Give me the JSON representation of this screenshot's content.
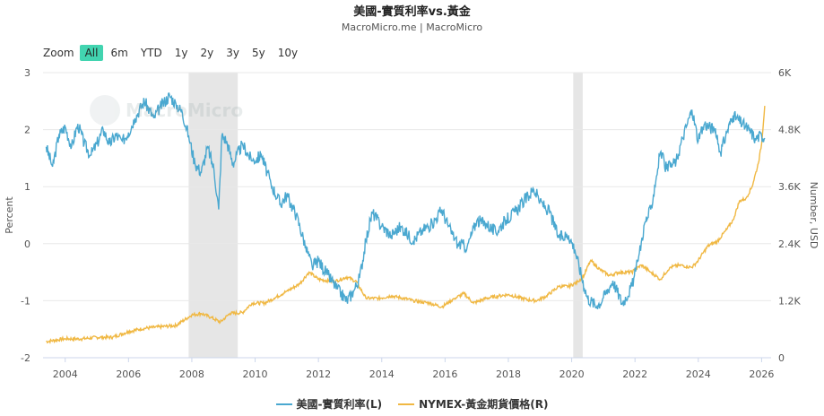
{
  "header": {
    "title": "美國-實質利率vs.黃金",
    "subtitle": "MacroMicro.me | MacroMicro"
  },
  "zoom": {
    "label": "Zoom",
    "options": [
      "All",
      "6m",
      "YTD",
      "1y",
      "2y",
      "3y",
      "5y",
      "10y"
    ],
    "active": "All"
  },
  "watermark": {
    "text": "MacroMicro"
  },
  "colors": {
    "real_rate": "#4aa8d0",
    "gold": "#f0b843",
    "recession": "#e6e6e6"
  },
  "chart_data": {
    "type": "line",
    "title": "美國-實質利率vs.黃金",
    "xlim": [
      2003.3,
      2026.3
    ],
    "x_ticks": [
      "2004",
      "2006",
      "2008",
      "2010",
      "2012",
      "2014",
      "2016",
      "2018",
      "2020",
      "2022",
      "2024",
      "2026"
    ],
    "left_axis": {
      "label": "Percent",
      "ylim": [
        -2,
        3
      ],
      "ticks": [
        "3",
        "2",
        "1",
        "0",
        "-1",
        "-2"
      ]
    },
    "right_axis": {
      "label": "Number, USD",
      "ylim": [
        0,
        6000
      ],
      "ticks": [
        "6K",
        "4.8K",
        "3.6K",
        "2.4K",
        "1.2K",
        "0"
      ]
    },
    "recession_bands": [
      [
        2007.9,
        2009.45
      ],
      [
        2020.05,
        2020.35
      ]
    ],
    "legend_position": "bottom",
    "series": [
      {
        "name": "美國-實質利率(L)",
        "axis": "left",
        "color": "#4aa8d0",
        "points": [
          [
            2003.4,
            1.7
          ],
          [
            2003.6,
            1.35
          ],
          [
            2003.8,
            1.9
          ],
          [
            2004.0,
            2.05
          ],
          [
            2004.2,
            1.7
          ],
          [
            2004.4,
            2.1
          ],
          [
            2004.6,
            1.75
          ],
          [
            2004.8,
            1.55
          ],
          [
            2005.0,
            1.75
          ],
          [
            2005.2,
            2.0
          ],
          [
            2005.4,
            1.75
          ],
          [
            2005.6,
            1.9
          ],
          [
            2005.8,
            1.8
          ],
          [
            2006.0,
            1.95
          ],
          [
            2006.2,
            2.2
          ],
          [
            2006.5,
            2.5
          ],
          [
            2006.8,
            2.2
          ],
          [
            2007.0,
            2.4
          ],
          [
            2007.3,
            2.6
          ],
          [
            2007.5,
            2.45
          ],
          [
            2007.7,
            2.3
          ],
          [
            2007.9,
            1.9
          ],
          [
            2008.1,
            1.4
          ],
          [
            2008.3,
            1.25
          ],
          [
            2008.5,
            1.7
          ],
          [
            2008.7,
            1.3
          ],
          [
            2008.85,
            0.6
          ],
          [
            2008.95,
            1.9
          ],
          [
            2009.1,
            1.8
          ],
          [
            2009.3,
            1.4
          ],
          [
            2009.6,
            1.75
          ],
          [
            2009.9,
            1.45
          ],
          [
            2010.2,
            1.55
          ],
          [
            2010.5,
            1.05
          ],
          [
            2010.8,
            0.7
          ],
          [
            2011.0,
            0.85
          ],
          [
            2011.3,
            0.5
          ],
          [
            2011.6,
            -0.05
          ],
          [
            2011.8,
            -0.4
          ],
          [
            2012.0,
            -0.3
          ],
          [
            2012.3,
            -0.55
          ],
          [
            2012.6,
            -0.8
          ],
          [
            2012.9,
            -1.0
          ],
          [
            2013.1,
            -0.85
          ],
          [
            2013.3,
            -0.6
          ],
          [
            2013.5,
            0.05
          ],
          [
            2013.7,
            0.55
          ],
          [
            2014.0,
            0.3
          ],
          [
            2014.3,
            0.15
          ],
          [
            2014.6,
            0.3
          ],
          [
            2015.0,
            0.05
          ],
          [
            2015.3,
            0.25
          ],
          [
            2015.6,
            0.35
          ],
          [
            2015.9,
            0.6
          ],
          [
            2016.1,
            0.3
          ],
          [
            2016.4,
            0.0
          ],
          [
            2016.7,
            -0.05
          ],
          [
            2017.0,
            0.4
          ],
          [
            2017.3,
            0.35
          ],
          [
            2017.6,
            0.2
          ],
          [
            2017.9,
            0.4
          ],
          [
            2018.2,
            0.55
          ],
          [
            2018.5,
            0.75
          ],
          [
            2018.8,
            0.95
          ],
          [
            2019.0,
            0.75
          ],
          [
            2019.3,
            0.55
          ],
          [
            2019.6,
            0.1
          ],
          [
            2019.9,
            0.15
          ],
          [
            2020.1,
            -0.1
          ],
          [
            2020.3,
            -0.55
          ],
          [
            2020.5,
            -0.95
          ],
          [
            2020.8,
            -1.1
          ],
          [
            2021.0,
            -0.95
          ],
          [
            2021.3,
            -0.65
          ],
          [
            2021.6,
            -1.05
          ],
          [
            2021.9,
            -0.75
          ],
          [
            2022.1,
            -0.3
          ],
          [
            2022.3,
            0.35
          ],
          [
            2022.5,
            0.6
          ],
          [
            2022.8,
            1.6
          ],
          [
            2023.0,
            1.3
          ],
          [
            2023.3,
            1.45
          ],
          [
            2023.5,
            1.85
          ],
          [
            2023.8,
            2.35
          ],
          [
            2024.0,
            1.8
          ],
          [
            2024.2,
            2.1
          ],
          [
            2024.5,
            2.0
          ],
          [
            2024.7,
            1.6
          ],
          [
            2024.9,
            1.95
          ],
          [
            2025.1,
            2.25
          ],
          [
            2025.4,
            2.1
          ],
          [
            2025.6,
            2.0
          ],
          [
            2025.8,
            1.85
          ],
          [
            2026.0,
            1.9
          ],
          [
            2026.1,
            1.85
          ]
        ]
      },
      {
        "name": "NYMEX-黃金期貨價格(R)",
        "axis": "right",
        "color": "#f0b843",
        "points": [
          [
            2003.4,
            340
          ],
          [
            2004.0,
            400
          ],
          [
            2004.5,
            395
          ],
          [
            2005.0,
            430
          ],
          [
            2005.5,
            430
          ],
          [
            2006.0,
            550
          ],
          [
            2006.5,
            620
          ],
          [
            2007.0,
            650
          ],
          [
            2007.5,
            680
          ],
          [
            2008.0,
            900
          ],
          [
            2008.3,
            930
          ],
          [
            2008.6,
            850
          ],
          [
            2008.9,
            750
          ],
          [
            2009.2,
            930
          ],
          [
            2009.6,
            950
          ],
          [
            2009.9,
            1150
          ],
          [
            2010.3,
            1150
          ],
          [
            2010.6,
            1250
          ],
          [
            2011.0,
            1400
          ],
          [
            2011.4,
            1550
          ],
          [
            2011.7,
            1800
          ],
          [
            2012.0,
            1650
          ],
          [
            2012.5,
            1600
          ],
          [
            2012.9,
            1700
          ],
          [
            2013.2,
            1600
          ],
          [
            2013.5,
            1250
          ],
          [
            2013.9,
            1250
          ],
          [
            2014.3,
            1300
          ],
          [
            2014.7,
            1250
          ],
          [
            2015.0,
            1200
          ],
          [
            2015.5,
            1150
          ],
          [
            2015.9,
            1070
          ],
          [
            2016.3,
            1250
          ],
          [
            2016.6,
            1350
          ],
          [
            2016.9,
            1150
          ],
          [
            2017.3,
            1250
          ],
          [
            2017.7,
            1300
          ],
          [
            2018.0,
            1330
          ],
          [
            2018.6,
            1220
          ],
          [
            2018.9,
            1200
          ],
          [
            2019.2,
            1300
          ],
          [
            2019.6,
            1500
          ],
          [
            2019.9,
            1500
          ],
          [
            2020.2,
            1600
          ],
          [
            2020.4,
            1750
          ],
          [
            2020.6,
            2050
          ],
          [
            2020.9,
            1850
          ],
          [
            2021.2,
            1730
          ],
          [
            2021.5,
            1800
          ],
          [
            2021.9,
            1800
          ],
          [
            2022.2,
            1950
          ],
          [
            2022.5,
            1800
          ],
          [
            2022.8,
            1650
          ],
          [
            2023.1,
            1900
          ],
          [
            2023.4,
            1950
          ],
          [
            2023.8,
            1900
          ],
          [
            2024.0,
            2050
          ],
          [
            2024.3,
            2350
          ],
          [
            2024.6,
            2450
          ],
          [
            2024.9,
            2700
          ],
          [
            2025.1,
            2900
          ],
          [
            2025.3,
            3300
          ],
          [
            2025.5,
            3350
          ],
          [
            2025.7,
            3600
          ],
          [
            2025.9,
            4100
          ],
          [
            2026.0,
            4500
          ],
          [
            2026.1,
            5300
          ]
        ]
      }
    ]
  }
}
